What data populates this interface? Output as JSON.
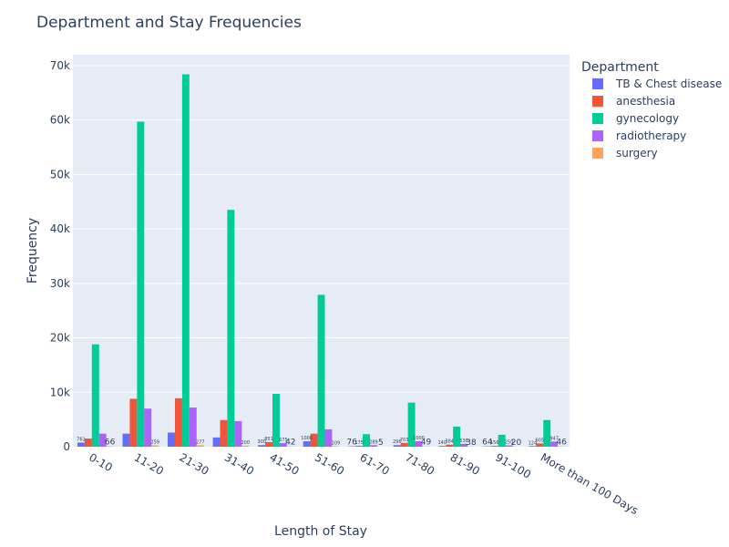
{
  "chart_data": {
    "type": "bar",
    "title": "Department and Stay Frequencies",
    "xlabel": "Length of Stay",
    "ylabel": "Frequency",
    "ylim": [
      0,
      72000
    ],
    "yticks": [
      0,
      10000,
      20000,
      30000,
      40000,
      50000,
      60000,
      70000
    ],
    "ytick_labels": [
      "0",
      "10k",
      "20k",
      "30k",
      "40k",
      "50k",
      "60k",
      "70k"
    ],
    "grid": true,
    "legend_title": "Department",
    "legend_position": "top-right",
    "categories": [
      "0-10",
      "11-20",
      "21-30",
      "31-40",
      "41-50",
      "51-60",
      "61-70",
      "71-80",
      "81-90",
      "91-100",
      "More than 100 Days"
    ],
    "series": [
      {
        "name": "TB & Chest disease",
        "color": "#636efa",
        "values": [
          761,
          2400,
          2600,
          1700,
          300,
          1000,
          76,
          296,
          140,
          64,
          124
        ],
        "labels": [
          "761",
          "",
          "",
          "",
          "300",
          "1000",
          "76",
          "296",
          "140",
          "64",
          "124"
        ]
      },
      {
        "name": "anesthesia",
        "color": "#ef553b",
        "values": [
          1500,
          8800,
          8900,
          4900,
          851,
          2400,
          175,
          703,
          384,
          156,
          605
        ],
        "labels": [
          "",
          "",
          "",
          "",
          "851",
          "",
          "175",
          "703",
          "384",
          "156",
          "605"
        ]
      },
      {
        "name": "gynecology",
        "color": "#00cc96",
        "values": [
          18800,
          59700,
          68400,
          43500,
          9700,
          27900,
          2300,
          8100,
          3700,
          2200,
          4900
        ],
        "labels": [
          "",
          "",
          "",
          "",
          "",
          "",
          "",
          "",
          "",
          "",
          ""
        ]
      },
      {
        "name": "radiotherapy",
        "color": "#ab63fa",
        "values": [
          2400,
          7000,
          7200,
          4700,
          675,
          3200,
          289,
          1000,
          530,
          250,
          947
        ],
        "labels": [
          "",
          "",
          "",
          "",
          "675",
          "",
          "289",
          "1000",
          "530",
          "250",
          "947"
        ]
      },
      {
        "name": "surgery",
        "color": "#ffa15a",
        "values": [
          66,
          259,
          277,
          200,
          42,
          109,
          5,
          49,
          38,
          20,
          46
        ],
        "labels": [
          "66",
          "259",
          "277",
          "200",
          "42",
          "109",
          "5",
          "49",
          "38",
          "20",
          "46"
        ]
      }
    ]
  }
}
